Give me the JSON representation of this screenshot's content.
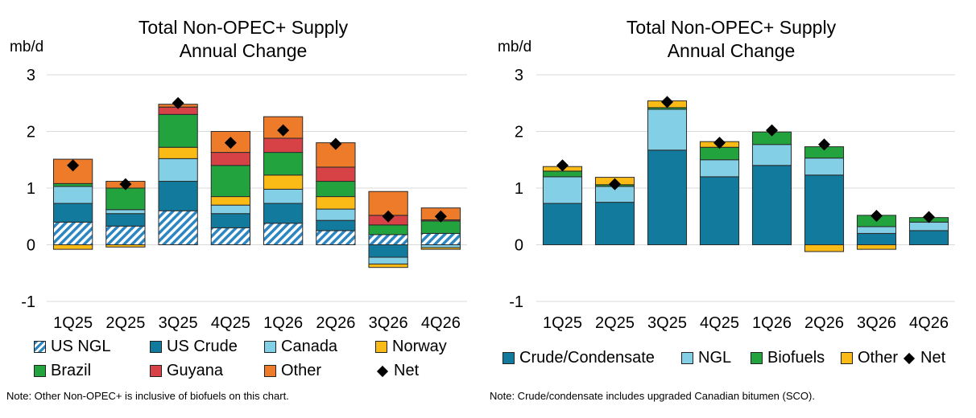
{
  "charts": {
    "left": {
      "title_line1": "Total Non-OPEC+ Supply",
      "title_line2": "Annual Change",
      "unit": "mb/d",
      "note": "Note: Other Non-OPEC+  is inclusive of biofuels on this chart."
    },
    "right": {
      "title_line1": "Total Non-OPEC+ Supply",
      "title_line2": "Annual Change",
      "unit": "mb/d",
      "note": "Note: Crude/condensate includes upgraded Canadian bitumen (SCO)."
    }
  },
  "chart_data": [
    {
      "type": "bar",
      "stacked": true,
      "title": "Total Non-OPEC+ Supply Annual Change",
      "ylabel": "mb/d",
      "ylim": [
        -1,
        3
      ],
      "yticks": [
        "-1",
        "0",
        "1",
        "2",
        "3"
      ],
      "grid": true,
      "categories": [
        "1Q25",
        "2Q25",
        "3Q25",
        "4Q25",
        "1Q26",
        "2Q26",
        "3Q26",
        "4Q26"
      ],
      "series": [
        {
          "name": "US NGL",
          "color": "#2b86c2",
          "pattern": "hatch",
          "values": [
            0.4,
            0.33,
            0.6,
            0.3,
            0.38,
            0.25,
            0.18,
            0.2
          ]
        },
        {
          "name": "US Crude",
          "color": "#127a9c",
          "values": [
            0.33,
            0.22,
            0.52,
            0.25,
            0.35,
            0.18,
            -0.22,
            0.0
          ]
        },
        {
          "name": "Canada",
          "color": "#83cfe5",
          "values": [
            0.3,
            0.07,
            0.4,
            0.15,
            0.25,
            0.2,
            -0.12,
            -0.05
          ]
        },
        {
          "name": "Norway",
          "color": "#fbbb16",
          "values": [
            -0.08,
            -0.04,
            0.2,
            0.15,
            0.25,
            0.22,
            -0.06,
            -0.03
          ]
        },
        {
          "name": "Brazil",
          "color": "#22a33e",
          "values": [
            0.05,
            0.38,
            0.58,
            0.55,
            0.4,
            0.27,
            0.17,
            0.22
          ]
        },
        {
          "name": "Guyana",
          "color": "#d64246",
          "values": [
            0.0,
            0.0,
            0.13,
            0.23,
            0.25,
            0.25,
            0.17,
            0.02
          ]
        },
        {
          "name": "Other",
          "color": "#ed7b2a",
          "values": [
            0.43,
            0.12,
            0.05,
            0.37,
            0.38,
            0.43,
            0.42,
            0.21
          ]
        }
      ],
      "net": {
        "name": "Net",
        "values": [
          1.4,
          1.07,
          2.5,
          1.8,
          2.02,
          1.78,
          0.5,
          0.5
        ]
      },
      "legend": [
        "US NGL",
        "US Crude",
        "Canada",
        "Norway",
        "Brazil",
        "Guyana",
        "Other",
        "Net"
      ],
      "legend_position": "bottom"
    },
    {
      "type": "bar",
      "stacked": true,
      "title": "Total Non-OPEC+ Supply Annual Change",
      "ylabel": "mb/d",
      "ylim": [
        -1,
        3
      ],
      "yticks": [
        "-1",
        "0",
        "1",
        "2",
        "3"
      ],
      "grid": true,
      "categories": [
        "1Q25",
        "2Q25",
        "3Q25",
        "4Q25",
        "1Q26",
        "2Q26",
        "3Q26",
        "4Q26"
      ],
      "series": [
        {
          "name": "Crude/Condensate",
          "color": "#127a9c",
          "values": [
            0.73,
            0.75,
            1.67,
            1.2,
            1.4,
            1.23,
            0.2,
            0.25
          ]
        },
        {
          "name": "NGL",
          "color": "#83cfe5",
          "values": [
            0.47,
            0.28,
            0.72,
            0.3,
            0.37,
            0.3,
            0.12,
            0.15
          ]
        },
        {
          "name": "Biofuels",
          "color": "#22a33e",
          "values": [
            0.1,
            0.03,
            0.03,
            0.22,
            0.22,
            0.2,
            0.2,
            0.08
          ]
        },
        {
          "name": "Other",
          "color": "#fbbb16",
          "values": [
            0.08,
            0.13,
            0.12,
            0.1,
            0.0,
            -0.12,
            -0.08,
            0.0
          ]
        }
      ],
      "net": {
        "name": "Net",
        "values": [
          1.4,
          1.07,
          2.52,
          1.8,
          2.02,
          1.77,
          0.51,
          0.49
        ]
      },
      "legend": [
        "Crude/Condensate",
        "NGL",
        "Biofuels",
        "Other",
        "Net"
      ],
      "legend_position": "bottom"
    }
  ]
}
